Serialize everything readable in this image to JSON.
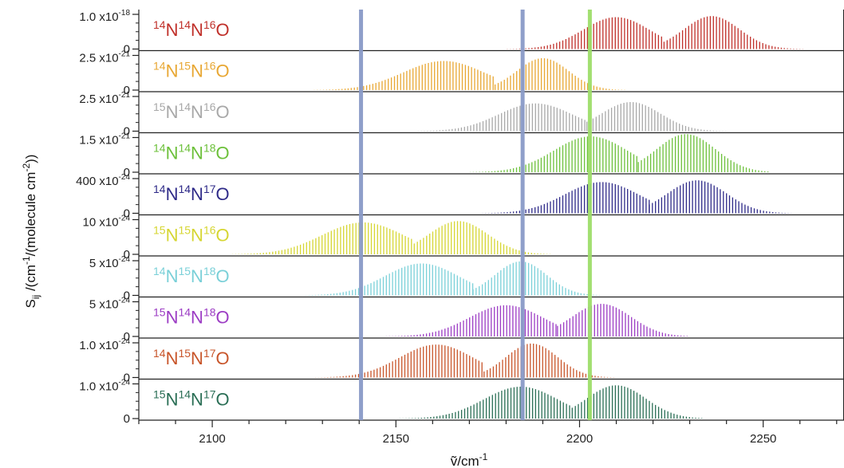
{
  "chart_data": {
    "type": "bar",
    "title": "",
    "xlabel": {
      "base": "ṽ/cm",
      "sup": "-1"
    },
    "ylabel": {
      "parts": [
        {
          "t": "S"
        },
        {
          "sub": "ij"
        },
        {
          "t": " /(cm"
        },
        {
          "sup": "-1"
        },
        {
          "t": "/(molecule cm"
        },
        {
          "sup": "-2"
        },
        {
          "t": "))"
        }
      ]
    },
    "xlim": [
      2080,
      2272
    ],
    "x_ticks": [
      "2100",
      "2150",
      "2200",
      "2250"
    ],
    "x_tick_values": [
      2100,
      2150,
      2200,
      2250
    ],
    "grid": false,
    "vertical_markers": [
      {
        "x": 2140.5,
        "color": "#8a9ac8"
      },
      {
        "x": 2184.5,
        "color": "#8a9ac8"
      },
      {
        "x": 2202.8,
        "color": "#9ede6a"
      }
    ],
    "series": [
      {
        "name": "14N14N16O",
        "label": [
          {
            "sup": "14"
          },
          {
            "t": "N"
          },
          {
            "sup": "14"
          },
          {
            "t": "N"
          },
          {
            "sup": "16"
          },
          {
            "t": "O"
          }
        ],
        "color": "#c0302a",
        "peak_tick": {
          "base": "1.0 x10",
          "exp": "-18"
        },
        "ymax": 1.0,
        "spacing": 0.84,
        "branches": [
          {
            "center": 2210,
            "sigma": 9,
            "amp": 0.92,
            "from": 2140,
            "to": 2223
          },
          {
            "center": 2236,
            "sigma": 7.5,
            "amp": 0.95,
            "from": 2223,
            "to": 2265
          }
        ]
      },
      {
        "name": "14N15N16O",
        "label": [
          {
            "sup": "14"
          },
          {
            "t": "N"
          },
          {
            "sup": "15"
          },
          {
            "t": "N"
          },
          {
            "sup": "16"
          },
          {
            "t": "O"
          }
        ],
        "color": "#e8a733",
        "peak_tick": {
          "base": "2.5 x10",
          "exp": "-21"
        },
        "ymax": 2.5,
        "spacing": 0.84,
        "branches": [
          {
            "center": 2163,
            "sigma": 11,
            "amp": 2.1,
            "from": 2095,
            "to": 2177
          },
          {
            "center": 2190,
            "sigma": 7,
            "amp": 2.3,
            "from": 2177,
            "to": 2216
          }
        ]
      },
      {
        "name": "15N14N16O",
        "label": [
          {
            "sup": "15"
          },
          {
            "t": "N"
          },
          {
            "sup": "14"
          },
          {
            "t": "N"
          },
          {
            "sup": "16"
          },
          {
            "t": "O"
          }
        ],
        "color": "#a8a8a8",
        "peak_tick": {
          "base": "2.5 x10",
          "exp": "-21"
        },
        "ymax": 2.5,
        "spacing": 0.84,
        "branches": [
          {
            "center": 2188,
            "sigma": 10,
            "amp": 2.0,
            "from": 2125,
            "to": 2202
          },
          {
            "center": 2214,
            "sigma": 8,
            "amp": 2.1,
            "from": 2202,
            "to": 2240
          }
        ]
      },
      {
        "name": "14N14N18O",
        "label": [
          {
            "sup": "14"
          },
          {
            "t": "N"
          },
          {
            "sup": "14"
          },
          {
            "t": "N"
          },
          {
            "sup": "18"
          },
          {
            "t": "O"
          }
        ],
        "color": "#6cc03a",
        "peak_tick": {
          "base": "1.5 x10",
          "exp": "-21"
        },
        "ymax": 1.5,
        "spacing": 0.84,
        "branches": [
          {
            "center": 2203,
            "sigma": 10,
            "amp": 1.55,
            "from": 2140,
            "to": 2216
          },
          {
            "center": 2229,
            "sigma": 8,
            "amp": 1.65,
            "from": 2216,
            "to": 2252
          }
        ]
      },
      {
        "name": "14N14N17O",
        "label": [
          {
            "sup": "14"
          },
          {
            "t": "N"
          },
          {
            "sup": "14"
          },
          {
            "t": "N"
          },
          {
            "sup": "17"
          },
          {
            "t": "O"
          }
        ],
        "color": "#2e2a88",
        "peak_tick": {
          "base": "400 x10",
          "exp": "-24"
        },
        "ymax": 400,
        "spacing": 0.84,
        "branches": [
          {
            "center": 2206,
            "sigma": 10,
            "amp": 360,
            "from": 2140,
            "to": 2219
          },
          {
            "center": 2232,
            "sigma": 8,
            "amp": 380,
            "from": 2219,
            "to": 2258
          }
        ]
      },
      {
        "name": "15N15N16O",
        "label": [
          {
            "sup": "15"
          },
          {
            "t": "N"
          },
          {
            "sup": "15"
          },
          {
            "t": "N"
          },
          {
            "sup": "16"
          },
          {
            "t": "O"
          }
        ],
        "color": "#d6d632",
        "peak_tick": {
          "base": "10 x10",
          "exp": "-24"
        },
        "ymax": 10,
        "spacing": 0.84,
        "branches": [
          {
            "center": 2141,
            "sigma": 11,
            "amp": 9.2,
            "from": 2082,
            "to": 2155
          },
          {
            "center": 2167,
            "sigma": 8,
            "amp": 9.6,
            "from": 2155,
            "to": 2192
          }
        ]
      },
      {
        "name": "14N15N18O",
        "label": [
          {
            "sup": "14"
          },
          {
            "t": "N"
          },
          {
            "sup": "15"
          },
          {
            "t": "N"
          },
          {
            "sup": "18"
          },
          {
            "t": "O"
          }
        ],
        "color": "#7ad0d8",
        "peak_tick": {
          "base": "5 x10",
          "exp": "-24"
        },
        "ymax": 5,
        "spacing": 0.84,
        "branches": [
          {
            "center": 2157,
            "sigma": 10,
            "amp": 4.6,
            "from": 2097,
            "to": 2171
          },
          {
            "center": 2184,
            "sigma": 7,
            "amp": 4.9,
            "from": 2171,
            "to": 2206
          }
        ]
      },
      {
        "name": "15N14N18O",
        "label": [
          {
            "sup": "15"
          },
          {
            "t": "N"
          },
          {
            "sup": "14"
          },
          {
            "t": "N"
          },
          {
            "sup": "18"
          },
          {
            "t": "O"
          }
        ],
        "color": "#9c3cc4",
        "peak_tick": {
          "base": "5 x10",
          "exp": "-24"
        },
        "ymax": 5,
        "spacing": 0.84,
        "branches": [
          {
            "center": 2180,
            "sigma": 10,
            "amp": 4.5,
            "from": 2118,
            "to": 2194
          },
          {
            "center": 2206,
            "sigma": 8,
            "amp": 4.7,
            "from": 2194,
            "to": 2230
          }
        ]
      },
      {
        "name": "14N15N17O",
        "label": [
          {
            "sup": "14"
          },
          {
            "t": "N"
          },
          {
            "sup": "15"
          },
          {
            "t": "N"
          },
          {
            "sup": "17"
          },
          {
            "t": "O"
          }
        ],
        "color": "#c8552a",
        "peak_tick": {
          "base": "1.0 x10",
          "exp": "-24"
        },
        "ymax": 1.0,
        "spacing": 0.84,
        "branches": [
          {
            "center": 2161,
            "sigma": 10,
            "amp": 0.95,
            "from": 2097,
            "to": 2174
          },
          {
            "center": 2187,
            "sigma": 7,
            "amp": 0.98,
            "from": 2174,
            "to": 2210
          }
        ]
      },
      {
        "name": "15N14N17O",
        "label": [
          {
            "sup": "15"
          },
          {
            "t": "N"
          },
          {
            "sup": "14"
          },
          {
            "t": "N"
          },
          {
            "sup": "17"
          },
          {
            "t": "O"
          }
        ],
        "color": "#2a6e55",
        "peak_tick": {
          "base": "1.0 x10",
          "exp": "-24"
        },
        "ymax": 1.0,
        "spacing": 0.84,
        "branches": [
          {
            "center": 2184,
            "sigma": 10,
            "amp": 0.92,
            "from": 2120,
            "to": 2198
          },
          {
            "center": 2210,
            "sigma": 8,
            "amp": 0.96,
            "from": 2198,
            "to": 2234
          }
        ]
      }
    ]
  }
}
